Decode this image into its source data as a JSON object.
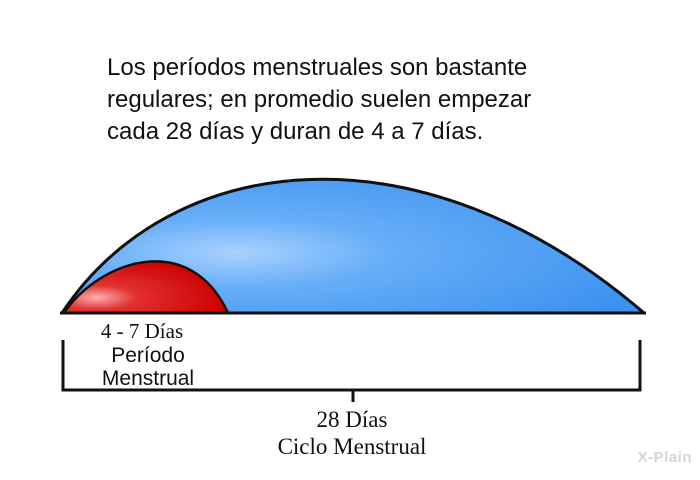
{
  "caption": {
    "lines": [
      "Los períodos menstruales son bastante",
      "regulares; en promedio suelen empezar",
      "cada 28 días y duran de 4 a 7 días."
    ]
  },
  "period": {
    "duration_label": "4 - 7 Días",
    "name_line1": "Período",
    "name_line2": "Menstrual"
  },
  "cycle": {
    "duration_label": "28 Días",
    "name": "Ciclo Menstrual"
  },
  "colors": {
    "cycle_arc": "#4a9cf2",
    "period_arc": "#d40000",
    "outline": "#111111"
  },
  "logo": {
    "text": "X-Plain"
  }
}
